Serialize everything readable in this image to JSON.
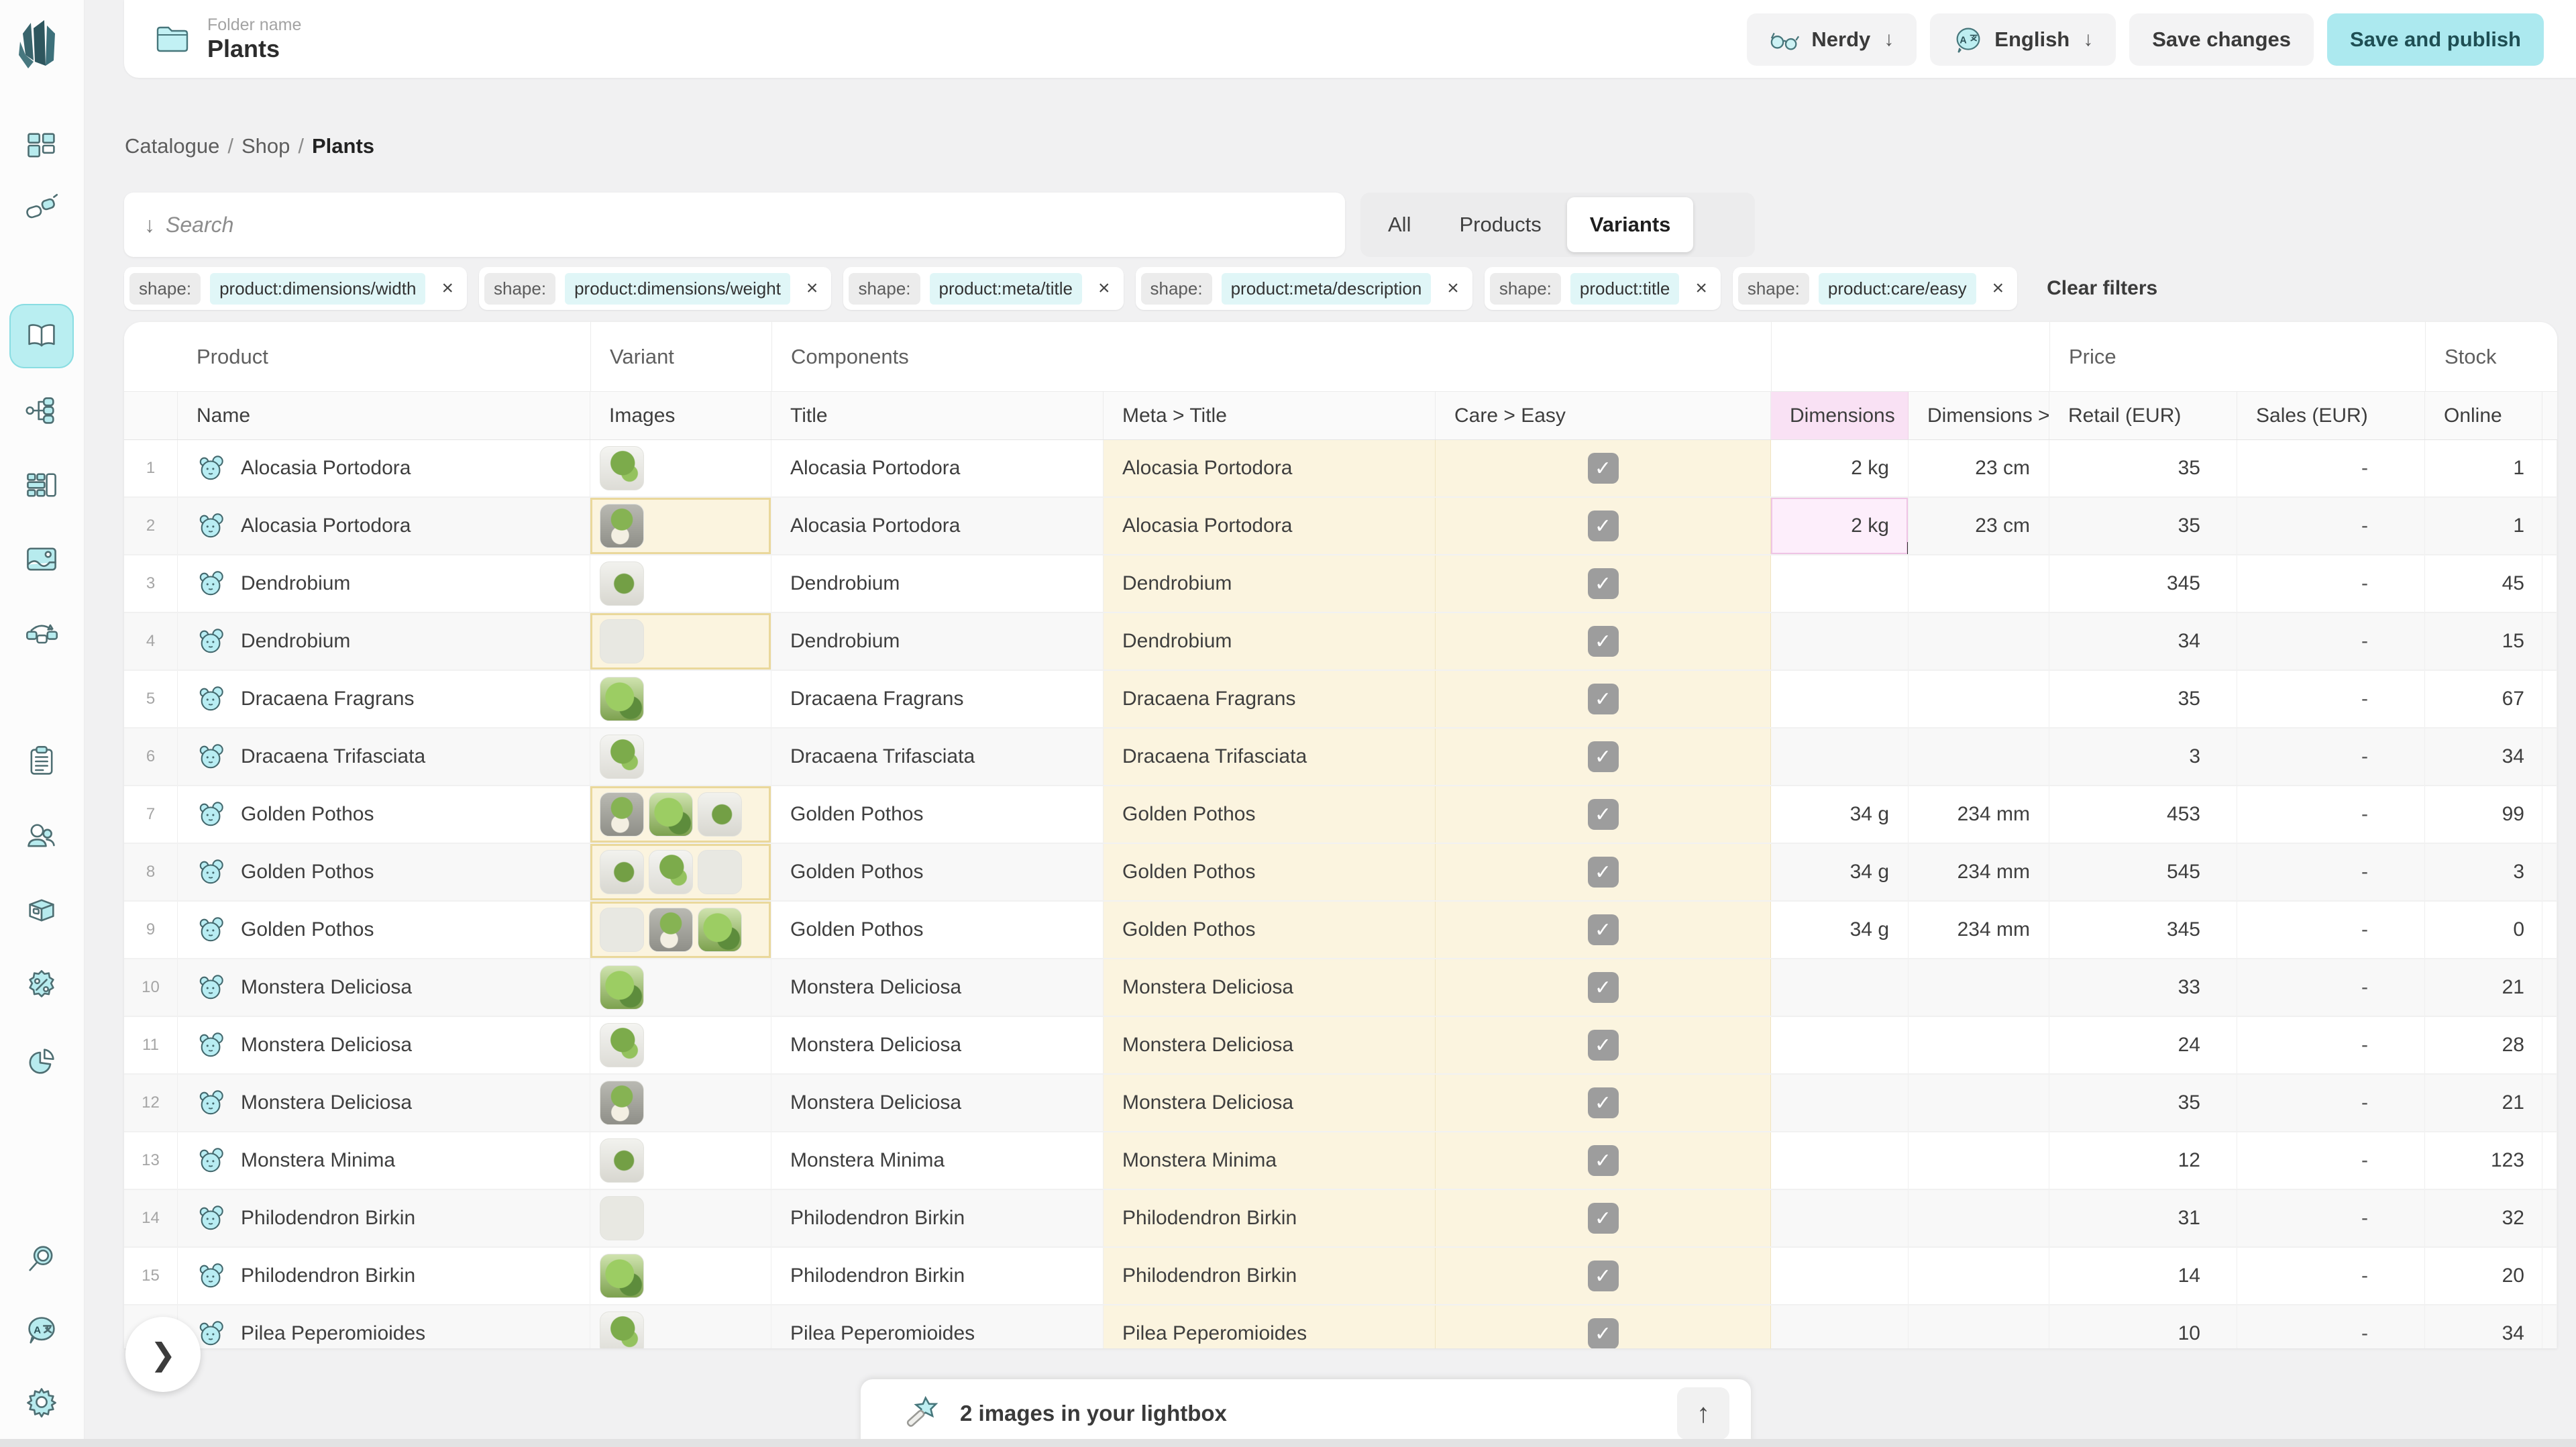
{
  "topbar": {
    "folder_label": "Folder name",
    "folder_name": "Plants",
    "user_button": "Nerdy",
    "language_button": "English",
    "save_changes_label": "Save changes",
    "save_publish_label": "Save and publish",
    "dropdown_glyph": "↓"
  },
  "breadcrumb": {
    "items": [
      "Catalogue",
      "Shop"
    ],
    "current": "Plants",
    "separator": "/"
  },
  "search": {
    "placeholder": "Search",
    "prefix_glyph": "↓"
  },
  "tabs": [
    {
      "label": "All",
      "active": false
    },
    {
      "label": "Products",
      "active": false
    },
    {
      "label": "Variants",
      "active": true
    }
  ],
  "filters": {
    "key_label": "shape:",
    "remove_glyph": "×",
    "chips": [
      "product:dimensions/width",
      "product:dimensions/weight",
      "product:meta/title",
      "product:meta/description",
      "product:title",
      "product:care/easy"
    ],
    "clear_label": "Clear filters"
  },
  "table": {
    "groups": {
      "product": "Product",
      "variant": "Variant",
      "components": "Components",
      "price": "Price",
      "stock": "Stock"
    },
    "columns": {
      "name": "Name",
      "images": "Images",
      "title": "Title",
      "meta_title": "Meta > Title",
      "care_easy": "Care > Easy",
      "dimensions": "Dimensions",
      "dimensions2": "Dimensions >",
      "retail": "Retail (EUR)",
      "sales": "Sales (EUR)",
      "online": "Online"
    },
    "rows": [
      {
        "num": "1",
        "name": "Alocasia Portodora",
        "images": 1,
        "images_modified": false,
        "title": "Alocasia Portodora",
        "meta_title": "Alocasia Portodora",
        "care_easy": true,
        "dimensions": "2 kg",
        "dimensions2": "23 cm",
        "retail": "35",
        "sales": "-",
        "online": "1",
        "dim_selected": false
      },
      {
        "num": "2",
        "name": "Alocasia Portodora",
        "images": 1,
        "images_modified": true,
        "title": "Alocasia Portodora",
        "meta_title": "Alocasia Portodora",
        "care_easy": true,
        "dimensions": "2 kg",
        "dimensions2": "23 cm",
        "retail": "35",
        "sales": "-",
        "online": "1",
        "dim_selected": true
      },
      {
        "num": "3",
        "name": "Dendrobium",
        "images": 1,
        "images_modified": false,
        "title": "Dendrobium",
        "meta_title": "Dendrobium",
        "care_easy": true,
        "dimensions": "",
        "dimensions2": "",
        "retail": "345",
        "sales": "-",
        "online": "45",
        "dim_selected": false
      },
      {
        "num": "4",
        "name": "Dendrobium",
        "images": 1,
        "images_modified": true,
        "title": "Dendrobium",
        "meta_title": "Dendrobium",
        "care_easy": true,
        "dimensions": "",
        "dimensions2": "",
        "retail": "34",
        "sales": "-",
        "online": "15",
        "dim_selected": false
      },
      {
        "num": "5",
        "name": "Dracaena Fragrans",
        "images": 1,
        "images_modified": false,
        "title": "Dracaena Fragrans",
        "meta_title": "Dracaena Fragrans",
        "care_easy": true,
        "dimensions": "",
        "dimensions2": "",
        "retail": "35",
        "sales": "-",
        "online": "67",
        "dim_selected": false
      },
      {
        "num": "6",
        "name": "Dracaena Trifasciata",
        "images": 1,
        "images_modified": false,
        "title": "Dracaena Trifasciata",
        "meta_title": "Dracaena Trifasciata",
        "care_easy": true,
        "dimensions": "",
        "dimensions2": "",
        "retail": "3",
        "sales": "-",
        "online": "34",
        "dim_selected": false
      },
      {
        "num": "7",
        "name": "Golden Pothos",
        "images": 3,
        "images_modified": true,
        "title": "Golden Pothos",
        "meta_title": "Golden Pothos",
        "care_easy": true,
        "dimensions": "34 g",
        "dimensions2": "234 mm",
        "retail": "453",
        "sales": "-",
        "online": "99",
        "dim_selected": false
      },
      {
        "num": "8",
        "name": "Golden Pothos",
        "images": 3,
        "images_modified": true,
        "title": "Golden Pothos",
        "meta_title": "Golden Pothos",
        "care_easy": true,
        "dimensions": "34 g",
        "dimensions2": "234 mm",
        "retail": "545",
        "sales": "-",
        "online": "3",
        "dim_selected": false
      },
      {
        "num": "9",
        "name": "Golden Pothos",
        "images": 3,
        "images_modified": true,
        "title": "Golden Pothos",
        "meta_title": "Golden Pothos",
        "care_easy": true,
        "dimensions": "34 g",
        "dimensions2": "234 mm",
        "retail": "345",
        "sales": "-",
        "online": "0",
        "dim_selected": false
      },
      {
        "num": "10",
        "name": "Monstera Deliciosa",
        "images": 1,
        "images_modified": false,
        "title": "Monstera Deliciosa",
        "meta_title": "Monstera Deliciosa",
        "care_easy": true,
        "dimensions": "",
        "dimensions2": "",
        "retail": "33",
        "sales": "-",
        "online": "21",
        "dim_selected": false
      },
      {
        "num": "11",
        "name": "Monstera Deliciosa",
        "images": 1,
        "images_modified": false,
        "title": "Monstera Deliciosa",
        "meta_title": "Monstera Deliciosa",
        "care_easy": true,
        "dimensions": "",
        "dimensions2": "",
        "retail": "24",
        "sales": "-",
        "online": "28",
        "dim_selected": false
      },
      {
        "num": "12",
        "name": "Monstera Deliciosa",
        "images": 1,
        "images_modified": false,
        "title": "Monstera Deliciosa",
        "meta_title": "Monstera Deliciosa",
        "care_easy": true,
        "dimensions": "",
        "dimensions2": "",
        "retail": "35",
        "sales": "-",
        "online": "21",
        "dim_selected": false
      },
      {
        "num": "13",
        "name": "Monstera Minima",
        "images": 1,
        "images_modified": false,
        "title": "Monstera Minima",
        "meta_title": "Monstera Minima",
        "care_easy": true,
        "dimensions": "",
        "dimensions2": "",
        "retail": "12",
        "sales": "-",
        "online": "123",
        "dim_selected": false
      },
      {
        "num": "14",
        "name": "Philodendron Birkin",
        "images": 1,
        "images_modified": false,
        "title": "Philodendron Birkin",
        "meta_title": "Philodendron Birkin",
        "care_easy": true,
        "dimensions": "",
        "dimensions2": "",
        "retail": "31",
        "sales": "-",
        "online": "32",
        "dim_selected": false
      },
      {
        "num": "15",
        "name": "Philodendron Birkin",
        "images": 1,
        "images_modified": false,
        "title": "Philodendron Birkin",
        "meta_title": "Philodendron Birkin",
        "care_easy": true,
        "dimensions": "",
        "dimensions2": "",
        "retail": "14",
        "sales": "-",
        "online": "20",
        "dim_selected": false
      },
      {
        "num": "16",
        "name": "Pilea Peperomioides",
        "images": 1,
        "images_modified": false,
        "title": "Pilea Peperomioides",
        "meta_title": "Pilea Peperomioides",
        "care_easy": true,
        "dimensions": "",
        "dimensions2": "",
        "retail": "10",
        "sales": "-",
        "online": "34",
        "dim_selected": false
      }
    ]
  },
  "sidebar": {
    "items": [
      "dashboard-grid-icon",
      "integrations-plug-icon",
      "catalogue-book-icon",
      "pipelines-flow-icon",
      "shapes-blocks-icon",
      "media-image-icon",
      "workflow-boxes-icon",
      "orders-clipboard-icon",
      "customers-users-icon",
      "fulfilment-box-icon",
      "discounts-percent-icon",
      "reports-pie-icon",
      "search-icon",
      "translations-icon",
      "settings-gear-icon"
    ],
    "active_item": "catalogue-book-icon"
  },
  "lightbox": {
    "message": "2 images in your lightbox",
    "up_glyph": "↑"
  },
  "misc": {
    "expand_glyph": "❯",
    "checkmark": "✓"
  },
  "colors": {
    "accent_teal": "#ace9ef",
    "active_nav": "#b9eef1",
    "modified_yellow": "#fbf4df",
    "selected_pink": "#fdeefb",
    "header_pink": "#f9e1f4",
    "chip_value_bg": "#e0f6f7"
  }
}
